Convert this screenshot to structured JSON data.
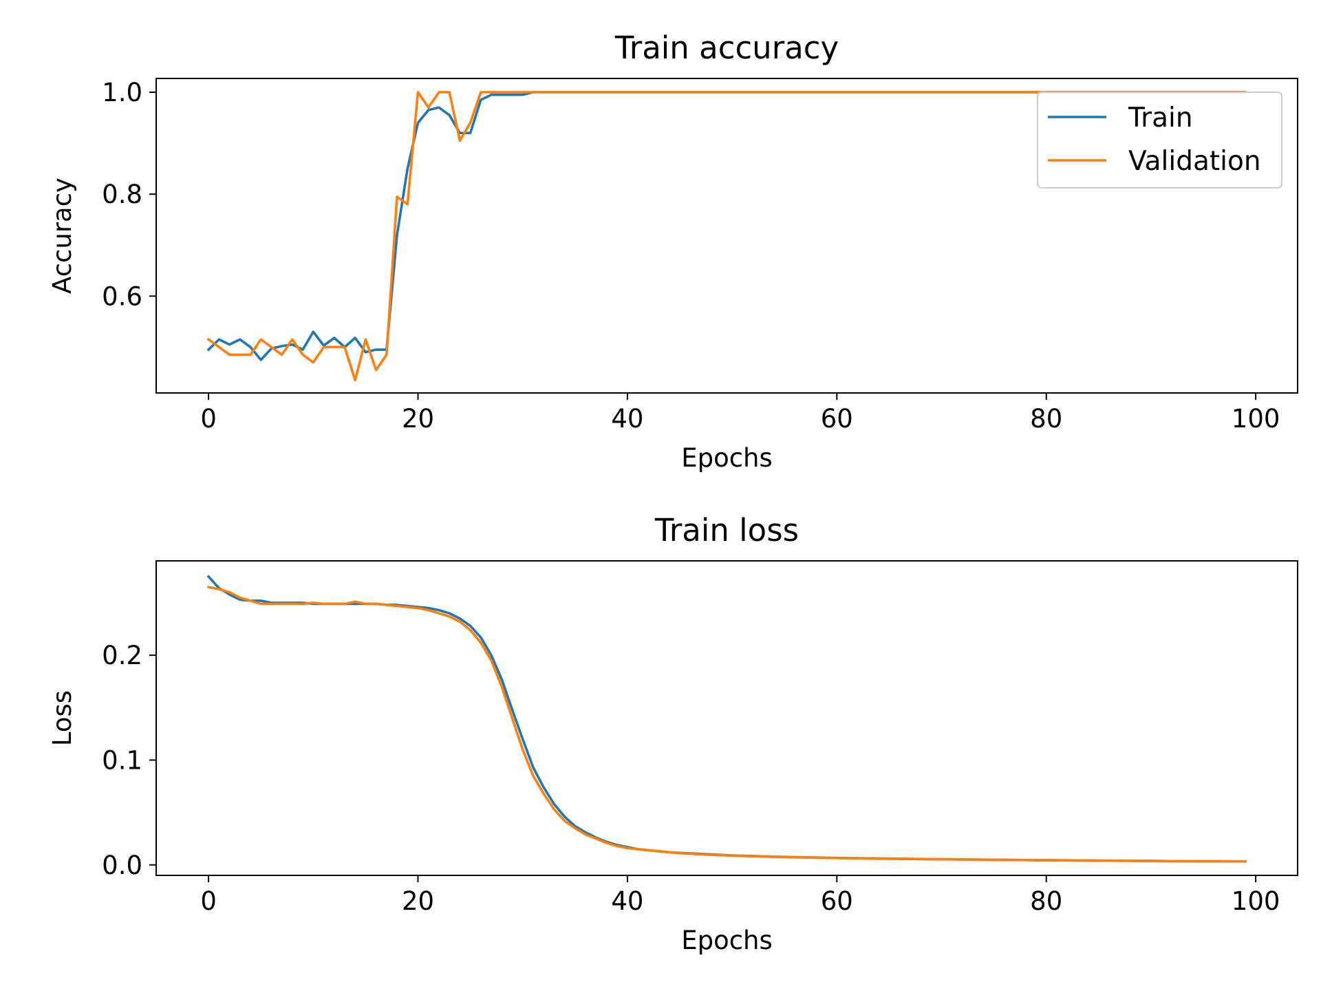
{
  "chart_data": [
    {
      "type": "line",
      "title": "Train accuracy",
      "xlabel": "Epochs",
      "ylabel": "Accuracy",
      "xlim": [
        -5,
        104
      ],
      "ylim": [
        0.41,
        1.027
      ],
      "xticks": [
        0,
        20,
        40,
        60,
        80,
        100
      ],
      "xtick_labels": [
        "0",
        "20",
        "40",
        "60",
        "80",
        "100"
      ],
      "yticks": [
        0.6,
        0.8,
        1.0
      ],
      "ytick_labels": [
        "0.6",
        "0.8",
        "1.0"
      ],
      "grid": false,
      "legend": {
        "position": "upper right",
        "entries": [
          "Train",
          "Validation"
        ]
      },
      "series": [
        {
          "name": "Train",
          "color": "#1f77b4",
          "x": [
            0,
            1,
            2,
            3,
            4,
            5,
            6,
            7,
            8,
            9,
            10,
            11,
            12,
            13,
            14,
            15,
            16,
            17,
            18,
            19,
            20,
            21,
            22,
            23,
            24,
            25,
            26,
            27,
            28,
            29,
            30,
            31,
            32,
            33,
            34,
            35,
            36,
            37,
            38,
            39,
            40,
            41,
            42,
            43,
            44,
            45,
            46,
            47,
            48,
            49,
            50,
            51,
            52,
            53,
            54,
            55,
            56,
            57,
            58,
            59,
            60,
            61,
            62,
            63,
            64,
            65,
            66,
            67,
            68,
            69,
            70,
            71,
            72,
            73,
            74,
            75,
            76,
            77,
            78,
            79,
            80,
            81,
            82,
            83,
            84,
            85,
            86,
            87,
            88,
            89,
            90,
            91,
            92,
            93,
            94,
            95,
            96,
            97,
            98,
            99
          ],
          "y": [
            0.495,
            0.515,
            0.505,
            0.515,
            0.5,
            0.475,
            0.497,
            0.502,
            0.505,
            0.495,
            0.53,
            0.503,
            0.518,
            0.5,
            0.518,
            0.49,
            0.495,
            0.495,
            0.72,
            0.85,
            0.94,
            0.965,
            0.97,
            0.955,
            0.92,
            0.92,
            0.985,
            0.995,
            0.995,
            0.995,
            0.995,
            1.0,
            1.0,
            1.0,
            1.0,
            1.0,
            1.0,
            1.0,
            1.0,
            1.0,
            1.0,
            1.0,
            1.0,
            1.0,
            1.0,
            1.0,
            1.0,
            1.0,
            1.0,
            1.0,
            1.0,
            1.0,
            1.0,
            1.0,
            1.0,
            1.0,
            1.0,
            1.0,
            1.0,
            1.0,
            1.0,
            1.0,
            1.0,
            1.0,
            1.0,
            1.0,
            1.0,
            1.0,
            1.0,
            1.0,
            1.0,
            1.0,
            1.0,
            1.0,
            1.0,
            1.0,
            1.0,
            1.0,
            1.0,
            1.0,
            1.0,
            1.0,
            1.0,
            1.0,
            1.0,
            1.0,
            1.0,
            1.0,
            1.0,
            1.0,
            1.0,
            1.0,
            1.0,
            1.0,
            1.0,
            1.0,
            1.0,
            1.0,
            1.0,
            1.0
          ]
        },
        {
          "name": "Validation",
          "color": "#ff7f0e",
          "x": [
            0,
            1,
            2,
            3,
            4,
            5,
            6,
            7,
            8,
            9,
            10,
            11,
            12,
            13,
            14,
            15,
            16,
            17,
            18,
            19,
            20,
            21,
            22,
            23,
            24,
            25,
            26,
            27,
            28,
            29,
            30,
            31,
            32,
            33,
            34,
            35,
            36,
            37,
            38,
            39,
            40,
            41,
            42,
            43,
            44,
            45,
            46,
            47,
            48,
            49,
            50,
            51,
            52,
            53,
            54,
            55,
            56,
            57,
            58,
            59,
            60,
            61,
            62,
            63,
            64,
            65,
            66,
            67,
            68,
            69,
            70,
            71,
            72,
            73,
            74,
            75,
            76,
            77,
            78,
            79,
            80,
            81,
            82,
            83,
            84,
            85,
            86,
            87,
            88,
            89,
            90,
            91,
            92,
            93,
            94,
            95,
            96,
            97,
            98,
            99
          ],
          "y": [
            0.515,
            0.5,
            0.485,
            0.485,
            0.485,
            0.515,
            0.5,
            0.485,
            0.515,
            0.485,
            0.47,
            0.5,
            0.5,
            0.5,
            0.435,
            0.515,
            0.455,
            0.485,
            0.795,
            0.78,
            1.0,
            0.97,
            1.0,
            1.0,
            0.905,
            0.94,
            1.0,
            1.0,
            1.0,
            1.0,
            1.0,
            1.0,
            1.0,
            1.0,
            1.0,
            1.0,
            1.0,
            1.0,
            1.0,
            1.0,
            1.0,
            1.0,
            1.0,
            1.0,
            1.0,
            1.0,
            1.0,
            1.0,
            1.0,
            1.0,
            1.0,
            1.0,
            1.0,
            1.0,
            1.0,
            1.0,
            1.0,
            1.0,
            1.0,
            1.0,
            1.0,
            1.0,
            1.0,
            1.0,
            1.0,
            1.0,
            1.0,
            1.0,
            1.0,
            1.0,
            1.0,
            1.0,
            1.0,
            1.0,
            1.0,
            1.0,
            1.0,
            1.0,
            1.0,
            1.0,
            1.0,
            1.0,
            1.0,
            1.0,
            1.0,
            1.0,
            1.0,
            1.0,
            1.0,
            1.0,
            1.0,
            1.0,
            1.0,
            1.0,
            1.0,
            1.0,
            1.0,
            1.0,
            1.0,
            1.0
          ]
        }
      ]
    },
    {
      "type": "line",
      "title": "Train loss",
      "xlabel": "Epochs",
      "ylabel": "Loss",
      "xlim": [
        -5,
        104
      ],
      "ylim": [
        -0.01,
        0.29
      ],
      "xticks": [
        0,
        20,
        40,
        60,
        80,
        100
      ],
      "xtick_labels": [
        "0",
        "20",
        "40",
        "60",
        "80",
        "100"
      ],
      "yticks": [
        0.0,
        0.1,
        0.2
      ],
      "ytick_labels": [
        "0.0",
        "0.1",
        "0.2"
      ],
      "grid": false,
      "series": [
        {
          "name": "Train",
          "color": "#1f77b4",
          "x": [
            0,
            1,
            2,
            3,
            4,
            5,
            6,
            7,
            8,
            9,
            10,
            11,
            12,
            13,
            14,
            15,
            16,
            17,
            18,
            19,
            20,
            21,
            22,
            23,
            24,
            25,
            26,
            27,
            28,
            29,
            30,
            31,
            32,
            33,
            34,
            35,
            36,
            37,
            38,
            39,
            40,
            41,
            42,
            43,
            44,
            45,
            46,
            47,
            48,
            49,
            50,
            51,
            52,
            53,
            54,
            55,
            56,
            57,
            58,
            59,
            60,
            61,
            62,
            63,
            64,
            65,
            66,
            67,
            68,
            69,
            70,
            71,
            72,
            73,
            74,
            75,
            76,
            77,
            78,
            79,
            80,
            81,
            82,
            83,
            84,
            85,
            86,
            87,
            88,
            89,
            90,
            91,
            92,
            93,
            94,
            95,
            96,
            97,
            98,
            99
          ],
          "y": [
            0.275,
            0.264,
            0.258,
            0.253,
            0.252,
            0.252,
            0.25,
            0.25,
            0.25,
            0.25,
            0.249,
            0.249,
            0.249,
            0.249,
            0.249,
            0.249,
            0.249,
            0.248,
            0.248,
            0.247,
            0.246,
            0.245,
            0.243,
            0.24,
            0.235,
            0.228,
            0.217,
            0.2,
            0.177,
            0.148,
            0.12,
            0.093,
            0.074,
            0.058,
            0.046,
            0.037,
            0.031,
            0.026,
            0.022,
            0.019,
            0.017,
            0.015,
            0.014,
            0.013,
            0.012,
            0.0115,
            0.011,
            0.0105,
            0.01,
            0.0095,
            0.009,
            0.0087,
            0.0084,
            0.0081,
            0.0078,
            0.0076,
            0.0074,
            0.0072,
            0.007,
            0.0068,
            0.0066,
            0.0065,
            0.0064,
            0.0062,
            0.0061,
            0.006,
            0.0058,
            0.0057,
            0.0056,
            0.0055,
            0.0054,
            0.0053,
            0.0052,
            0.0051,
            0.005,
            0.0049,
            0.0048,
            0.0047,
            0.0046,
            0.0045,
            0.0045,
            0.0044,
            0.0043,
            0.0042,
            0.0042,
            0.0041,
            0.004,
            0.004,
            0.0039,
            0.0038,
            0.0038,
            0.0037,
            0.0036,
            0.0036,
            0.0035,
            0.0035,
            0.0034,
            0.0034,
            0.0033,
            0.0033
          ]
        },
        {
          "name": "Validation",
          "color": "#ff7f0e",
          "x": [
            0,
            1,
            2,
            3,
            4,
            5,
            6,
            7,
            8,
            9,
            10,
            11,
            12,
            13,
            14,
            15,
            16,
            17,
            18,
            19,
            20,
            21,
            22,
            23,
            24,
            25,
            26,
            27,
            28,
            29,
            30,
            31,
            32,
            33,
            34,
            35,
            36,
            37,
            38,
            39,
            40,
            41,
            42,
            43,
            44,
            45,
            46,
            47,
            48,
            49,
            50,
            51,
            52,
            53,
            54,
            55,
            56,
            57,
            58,
            59,
            60,
            61,
            62,
            63,
            64,
            65,
            66,
            67,
            68,
            69,
            70,
            71,
            72,
            73,
            74,
            75,
            76,
            77,
            78,
            79,
            80,
            81,
            82,
            83,
            84,
            85,
            86,
            87,
            88,
            89,
            90,
            91,
            92,
            93,
            94,
            95,
            96,
            97,
            98,
            99
          ],
          "y": [
            0.265,
            0.263,
            0.26,
            0.255,
            0.252,
            0.249,
            0.249,
            0.249,
            0.249,
            0.249,
            0.25,
            0.249,
            0.249,
            0.249,
            0.251,
            0.249,
            0.249,
            0.248,
            0.247,
            0.246,
            0.245,
            0.243,
            0.24,
            0.237,
            0.232,
            0.224,
            0.212,
            0.195,
            0.17,
            0.14,
            0.11,
            0.085,
            0.068,
            0.053,
            0.042,
            0.035,
            0.029,
            0.025,
            0.021,
            0.018,
            0.016,
            0.015,
            0.014,
            0.013,
            0.012,
            0.0112,
            0.0106,
            0.0101,
            0.0096,
            0.0092,
            0.0088,
            0.0085,
            0.0082,
            0.0079,
            0.0076,
            0.0074,
            0.0072,
            0.007,
            0.0068,
            0.0066,
            0.0065,
            0.0063,
            0.0062,
            0.0061,
            0.0059,
            0.0058,
            0.0057,
            0.0056,
            0.0055,
            0.0054,
            0.0053,
            0.0052,
            0.0051,
            0.005,
            0.0049,
            0.0048,
            0.0047,
            0.0046,
            0.0046,
            0.0045,
            0.0044,
            0.0043,
            0.0043,
            0.0042,
            0.0041,
            0.0041,
            0.004,
            0.0039,
            0.0039,
            0.0038,
            0.0037,
            0.0037,
            0.0036,
            0.0036,
            0.0035,
            0.0035,
            0.0034,
            0.0034,
            0.0033,
            0.0033
          ]
        }
      ]
    }
  ]
}
